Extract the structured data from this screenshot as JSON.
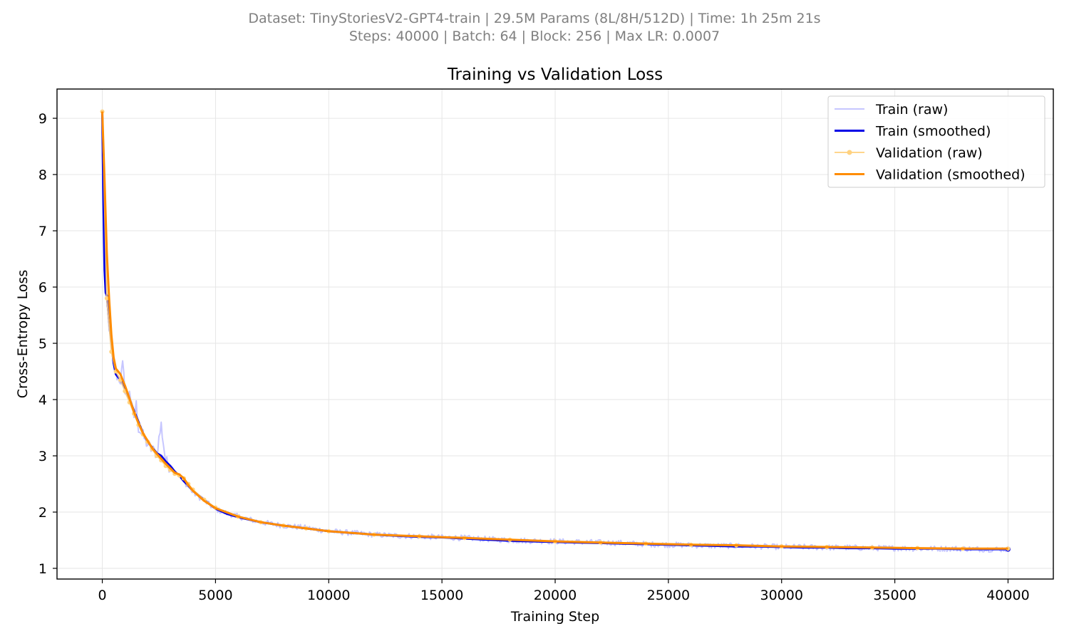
{
  "header": {
    "line1": "Dataset: TinyStoriesV2-GPT4-train | 29.5M Params (8L/8H/512D) | Time: 1h 25m 21s",
    "line2": "Steps: 40000 | Batch: 64 | Block: 256 | Max LR: 0.0007"
  },
  "chart_data": {
    "type": "line",
    "title": "Training vs Validation Loss",
    "xlabel": "Training Step",
    "ylabel": "Cross-Entropy Loss",
    "xlim": [
      -2000,
      42000
    ],
    "ylim": [
      0.81,
      9.52
    ],
    "xticks": [
      0,
      5000,
      10000,
      15000,
      20000,
      25000,
      30000,
      35000,
      40000
    ],
    "yticks": [
      1,
      2,
      3,
      4,
      5,
      6,
      7,
      8,
      9
    ],
    "grid": true,
    "legend_position": "top-right",
    "series": [
      {
        "name": "Train (raw)",
        "color": "#b3b3ff",
        "x": [
          0,
          50,
          100,
          150,
          200,
          300,
          400,
          500,
          600,
          700,
          800,
          900,
          1000,
          1100,
          1200,
          1300,
          1400,
          1500,
          1600,
          1800,
          2000,
          2200,
          2400,
          2600,
          2800,
          3000,
          3200,
          3400,
          3600,
          3800,
          4000,
          4500,
          5000,
          5500,
          6000,
          7000,
          8000,
          9000,
          10000,
          11000,
          12000,
          13000,
          14000,
          15000,
          16000,
          17000,
          18000,
          19000,
          20000,
          21000,
          22000,
          23000,
          24000,
          25000,
          26000,
          27000,
          28000,
          29000,
          30000,
          31000,
          32000,
          33000,
          34000,
          35000,
          36000,
          37000,
          38000,
          39000,
          40000
        ],
        "values": [
          9.1,
          7.8,
          6.2,
          5.8,
          5.75,
          5.3,
          4.9,
          4.6,
          4.45,
          4.4,
          4.35,
          4.6,
          4.2,
          4.0,
          4.2,
          3.85,
          3.7,
          3.9,
          3.5,
          3.35,
          3.2,
          3.1,
          3.05,
          3.55,
          2.9,
          2.8,
          2.75,
          2.65,
          2.55,
          2.45,
          2.35,
          2.2,
          2.05,
          1.98,
          1.92,
          1.82,
          1.76,
          1.72,
          1.66,
          1.63,
          1.6,
          1.58,
          1.57,
          1.55,
          1.54,
          1.52,
          1.5,
          1.49,
          1.48,
          1.47,
          1.46,
          1.45,
          1.43,
          1.42,
          1.41,
          1.4,
          1.4,
          1.39,
          1.38,
          1.38,
          1.37,
          1.37,
          1.36,
          1.36,
          1.35,
          1.35,
          1.35,
          1.34,
          1.34
        ]
      },
      {
        "name": "Train (smoothed)",
        "color": "#0000e6",
        "x": [
          0,
          50,
          100,
          150,
          200,
          300,
          400,
          500,
          600,
          800,
          1000,
          1200,
          1400,
          1600,
          1800,
          2000,
          2200,
          2400,
          2600,
          2800,
          3000,
          3200,
          3400,
          3600,
          3800,
          4000,
          4500,
          5000,
          5500,
          6000,
          7000,
          8000,
          9000,
          10000,
          11000,
          12000,
          13000,
          14000,
          15000,
          16000,
          17000,
          18000,
          19000,
          20000,
          21000,
          22000,
          23000,
          24000,
          25000,
          26000,
          27000,
          28000,
          29000,
          30000,
          31000,
          32000,
          33000,
          34000,
          35000,
          36000,
          37000,
          38000,
          39000,
          40000
        ],
        "values": [
          9.1,
          7.5,
          6.3,
          5.9,
          5.85,
          5.4,
          5.0,
          4.65,
          4.45,
          4.35,
          4.2,
          4.0,
          3.8,
          3.6,
          3.4,
          3.25,
          3.15,
          3.05,
          3.0,
          2.9,
          2.82,
          2.72,
          2.65,
          2.55,
          2.47,
          2.38,
          2.22,
          2.06,
          1.97,
          1.91,
          1.82,
          1.76,
          1.71,
          1.66,
          1.63,
          1.6,
          1.58,
          1.56,
          1.55,
          1.53,
          1.51,
          1.49,
          1.48,
          1.47,
          1.46,
          1.45,
          1.44,
          1.43,
          1.42,
          1.41,
          1.4,
          1.39,
          1.39,
          1.38,
          1.37,
          1.37,
          1.36,
          1.36,
          1.35,
          1.35,
          1.35,
          1.34,
          1.34,
          1.34
        ]
      },
      {
        "name": "Validation (raw)",
        "color": "#ffd280",
        "x": [
          0,
          200,
          400,
          600,
          800,
          1000,
          1200,
          1400,
          1600,
          1800,
          2000,
          2200,
          2400,
          2600,
          2800,
          3000,
          3200,
          3400,
          3600,
          3800,
          4000,
          4500,
          5000,
          6000,
          7000,
          8000,
          9000,
          10000,
          12000,
          14000,
          16000,
          18000,
          20000,
          22000,
          24000,
          26000,
          28000,
          30000,
          32000,
          34000,
          36000,
          38000,
          40000
        ],
        "values": [
          9.12,
          5.8,
          4.85,
          4.5,
          4.35,
          4.15,
          3.95,
          3.75,
          3.55,
          3.38,
          3.25,
          3.12,
          3.0,
          2.92,
          2.82,
          2.75,
          2.68,
          2.65,
          2.6,
          2.5,
          2.4,
          2.22,
          2.08,
          1.92,
          1.82,
          1.76,
          1.71,
          1.66,
          1.6,
          1.57,
          1.54,
          1.51,
          1.48,
          1.46,
          1.44,
          1.42,
          1.41,
          1.39,
          1.38,
          1.37,
          1.36,
          1.35,
          1.35
        ]
      },
      {
        "name": "Validation (smoothed)",
        "color": "#ff8c00",
        "x": [
          0,
          100,
          200,
          300,
          400,
          500,
          600,
          800,
          1000,
          1200,
          1400,
          1600,
          1800,
          2000,
          2200,
          2400,
          2600,
          2800,
          3000,
          3200,
          3400,
          3600,
          3800,
          4000,
          4500,
          5000,
          6000,
          7000,
          8000,
          9000,
          10000,
          12000,
          14000,
          16000,
          18000,
          20000,
          22000,
          24000,
          26000,
          28000,
          30000,
          32000,
          34000,
          36000,
          38000,
          40000
        ],
        "values": [
          9.12,
          7.9,
          6.6,
          5.8,
          5.15,
          4.75,
          4.55,
          4.45,
          4.25,
          4.02,
          3.78,
          3.58,
          3.4,
          3.27,
          3.14,
          3.04,
          2.95,
          2.86,
          2.78,
          2.7,
          2.67,
          2.6,
          2.48,
          2.38,
          2.2,
          2.07,
          1.92,
          1.82,
          1.76,
          1.71,
          1.66,
          1.6,
          1.57,
          1.54,
          1.51,
          1.48,
          1.46,
          1.44,
          1.42,
          1.41,
          1.39,
          1.38,
          1.37,
          1.36,
          1.35,
          1.35
        ]
      }
    ]
  }
}
